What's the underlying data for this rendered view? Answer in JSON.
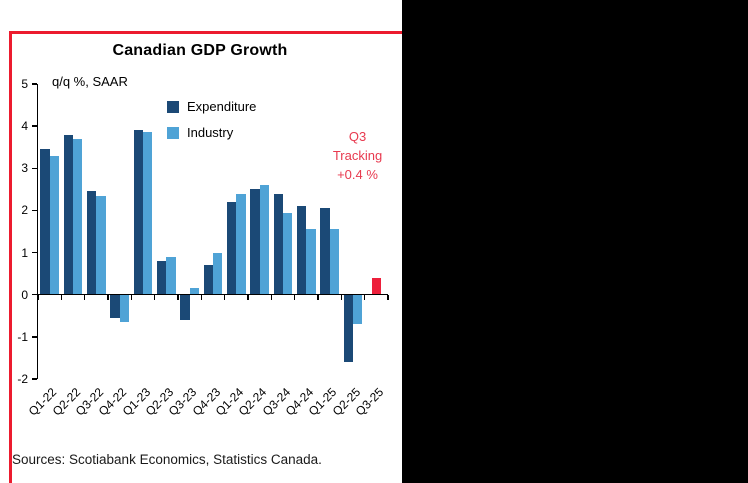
{
  "chart": {
    "title": "Canadian GDP Growth",
    "axis_note": "q/q %, SAAR",
    "border_color": "#ec1b2e",
    "y_ticks": [
      "5",
      "4",
      "3",
      "2",
      "1",
      "0",
      "-1",
      "-2"
    ],
    "legend": [
      {
        "label": "Expenditure",
        "color": "#1b4976"
      },
      {
        "label": "Industry",
        "color": "#4fa3d6"
      }
    ],
    "annotation": {
      "lines": [
        "Q3",
        "Tracking",
        "+0.4 %"
      ],
      "color": "#e8394e"
    },
    "source": "Sources: Scotiabank Economics, Statistics Canada."
  },
  "chart_data": {
    "type": "bar",
    "title": "Canadian GDP Growth",
    "ylabel": "q/q %, SAAR",
    "ylim": [
      -2,
      5
    ],
    "grid": false,
    "legend_position": "upper-center-inside",
    "categories": [
      "Q1-22",
      "Q2-22",
      "Q3-22",
      "Q4-22",
      "Q1-23",
      "Q2-23",
      "Q3-23",
      "Q4-23",
      "Q1-24",
      "Q2-24",
      "Q3-24",
      "Q4-24",
      "Q1-25",
      "Q2-25",
      "Q3-25"
    ],
    "series": [
      {
        "name": "Expenditure",
        "color": "#1b4976",
        "values": [
          3.45,
          3.8,
          2.45,
          -0.55,
          3.9,
          0.8,
          -0.6,
          0.7,
          2.2,
          2.5,
          2.4,
          2.1,
          2.05,
          -1.6,
          null
        ]
      },
      {
        "name": "Industry",
        "color": "#4fa3d6",
        "values": [
          3.3,
          3.7,
          2.35,
          -0.65,
          3.85,
          0.9,
          0.15,
          1.0,
          2.4,
          2.6,
          1.95,
          1.55,
          1.55,
          -0.7,
          null
        ]
      },
      {
        "name": "Q3 Tracking",
        "color": "#ed1f3b",
        "values": [
          null,
          null,
          null,
          null,
          null,
          null,
          null,
          null,
          null,
          null,
          null,
          null,
          null,
          null,
          0.4
        ]
      }
    ]
  }
}
